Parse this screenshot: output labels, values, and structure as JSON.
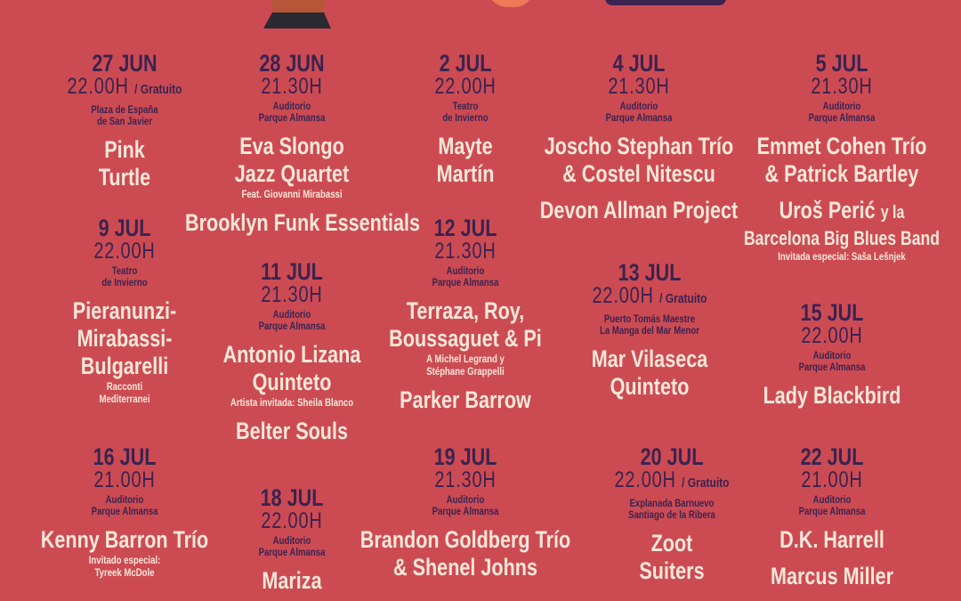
{
  "colors": {
    "background": "#cc4b53",
    "date_text": "#3a2350",
    "artist_text": "#f9e7d8"
  },
  "events": [
    {
      "date": "27 JUN",
      "time": "22.00H",
      "free": "/ Gratuito",
      "venue": [
        "Plaza de España",
        "de San Javier"
      ],
      "artists": [
        {
          "lines": [
            "Pink",
            "Turtle"
          ]
        }
      ]
    },
    {
      "date": "28 JUN",
      "time": "21.30H",
      "venue": [
        "Auditorio",
        "Parque Almansa"
      ],
      "artists": [
        {
          "lines": [
            "Eva Slongo",
            "Jazz Quartet"
          ],
          "notes": [
            "Feat. Giovanni Mirabassi"
          ]
        },
        {
          "lines": [
            "Brooklyn Funk Essentials"
          ]
        }
      ]
    },
    {
      "date": "2 JUL",
      "time": "22.00H",
      "venue": [
        "Teatro",
        "de Invierno"
      ],
      "artists": [
        {
          "lines": [
            "Mayte",
            "Martín"
          ]
        }
      ]
    },
    {
      "date": "4 JUL",
      "time": "21.30H",
      "venue": [
        "Auditorio",
        "Parque Almansa"
      ],
      "artists": [
        {
          "lines": [
            "Joscho Stephan Trío",
            "& Costel Nitescu"
          ]
        },
        {
          "lines": [
            "Devon Allman Project"
          ]
        }
      ]
    },
    {
      "date": "5 JUL",
      "time": "21.30H",
      "venue": [
        "Auditorio",
        "Parque Almansa"
      ],
      "artists": [
        {
          "lines": [
            "Emmet Cohen Trío",
            "& Patrick Bartley"
          ]
        },
        {
          "lines": [
            "Uroš Perić"
          ],
          "suffix": "y la",
          "lines2": [
            "Barcelona Big Blues Band"
          ],
          "notes": [
            "Invitada especial: Saša Lešnjek"
          ]
        }
      ]
    },
    {
      "date": "9 JUL",
      "time": "22.00H",
      "venue": [
        "Teatro",
        "de Invierno"
      ],
      "artists": [
        {
          "lines": [
            "Pieranunzi-",
            "Mirabassi-",
            "Bulgarelli"
          ],
          "notes": [
            "Racconti",
            "Mediterranei"
          ]
        }
      ]
    },
    {
      "date": "11 JUL",
      "time": "21.30H",
      "venue": [
        "Auditorio",
        "Parque Almansa"
      ],
      "artists": [
        {
          "lines": [
            "Antonio Lizana",
            "Quinteto"
          ],
          "notes": [
            "Artista invitada: Sheila Blanco"
          ]
        },
        {
          "lines": [
            "Belter Souls"
          ]
        }
      ]
    },
    {
      "date": "12 JUL",
      "time": "21.30H",
      "venue": [
        "Auditorio",
        "Parque Almansa"
      ],
      "artists": [
        {
          "lines": [
            "Terraza, Roy,",
            "Boussaguet & Pi"
          ],
          "notes": [
            "A Michel Legrand y",
            "Stéphane Grappelli"
          ]
        },
        {
          "lines": [
            "Parker Barrow"
          ]
        }
      ]
    },
    {
      "date": "13 JUL",
      "time": "22.00H",
      "free": "/ Gratuito",
      "venue": [
        "Puerto Tomás Maestre",
        "La Manga del Mar Menor"
      ],
      "artists": [
        {
          "lines": [
            "Mar Vilaseca",
            "Quinteto"
          ]
        }
      ]
    },
    {
      "date": "15 JUL",
      "time": "22.00H",
      "venue": [
        "Auditorio",
        "Parque Almansa"
      ],
      "artists": [
        {
          "lines": [
            "Lady Blackbird"
          ]
        }
      ]
    },
    {
      "date": "16 JUL",
      "time": "21.00H",
      "venue": [
        "Auditorio",
        "Parque Almansa"
      ],
      "artists": [
        {
          "lines": [
            "Kenny Barron Trío"
          ],
          "notes": [
            "Invitado especial:",
            "Tyreek McDole"
          ]
        }
      ]
    },
    {
      "date": "18 JUL",
      "time": "22.00H",
      "venue": [
        "Auditorio",
        "Parque Almansa"
      ],
      "artists": [
        {
          "lines": [
            "Mariza"
          ]
        }
      ]
    },
    {
      "date": "19 JUL",
      "time": "21.30H",
      "venue": [
        "Auditorio",
        "Parque Almansa"
      ],
      "artists": [
        {
          "lines": [
            "Brandon Goldberg Trío",
            "& Shenel Johns"
          ]
        }
      ]
    },
    {
      "date": "20 JUL",
      "time": "22.00H",
      "free": "/ Gratuito",
      "venue": [
        "Explanada Barnuevo",
        "Santiago de la Ribera"
      ],
      "artists": [
        {
          "lines": [
            "Zoot",
            "Suiters"
          ]
        }
      ]
    },
    {
      "date": "22 JUL",
      "time": "21.00H",
      "venue": [
        "Auditorio",
        "Parque Almansa"
      ],
      "artists": [
        {
          "lines": [
            "D.K. Harrell"
          ]
        },
        {
          "lines": [
            "Marcus Miller"
          ]
        }
      ]
    }
  ]
}
